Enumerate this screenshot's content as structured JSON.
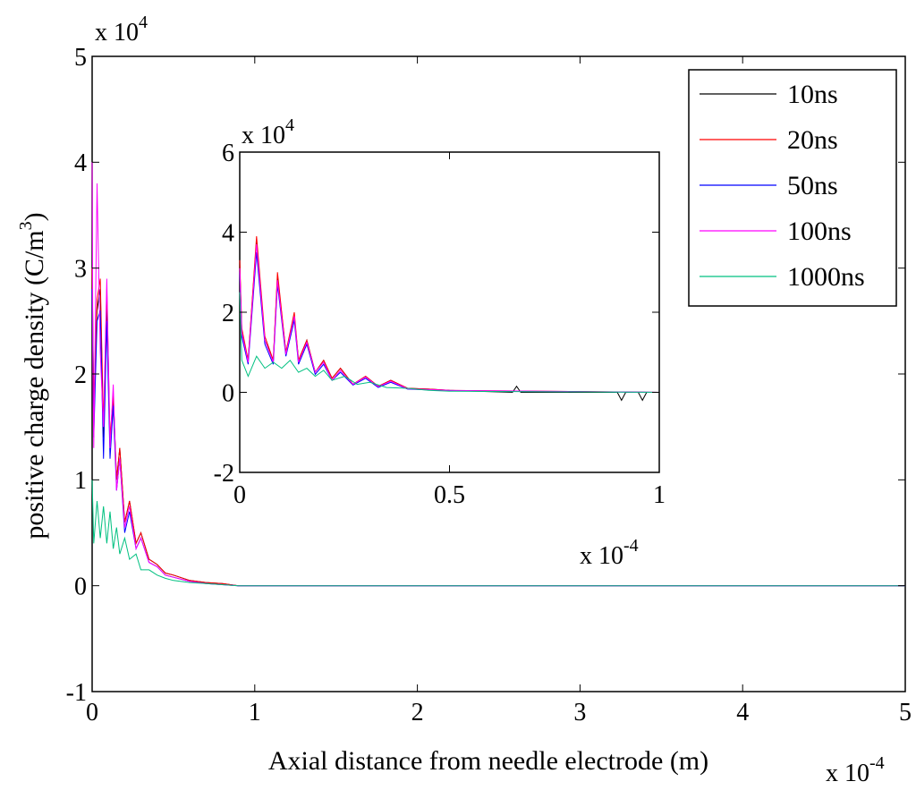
{
  "chart_data": [
    {
      "id": "main",
      "type": "line",
      "xlabel": "Axial distance from needle electrode (m)",
      "ylabel": "positive charge density (C/m³)",
      "ylabel_base": "positive charge density (C/m",
      "ylabel_sup": "3",
      "ylabel_close": ")",
      "xlim": [
        0,
        5
      ],
      "ylim": [
        -1,
        5
      ],
      "x_ticks": [
        0,
        1,
        2,
        3,
        4,
        5
      ],
      "y_ticks": [
        -1,
        0,
        1,
        2,
        3,
        4,
        5
      ],
      "x_multiplier": {
        "base": "x 10",
        "exp": "-4"
      },
      "y_multiplier": {
        "base": "x 10",
        "exp": "4"
      },
      "grid": false,
      "legend": {
        "placement": "top-right",
        "entries": [
          {
            "label": "10ns",
            "color": "#000000"
          },
          {
            "label": "20ns",
            "color": "#ff0000"
          },
          {
            "label": "50ns",
            "color": "#0000ff"
          },
          {
            "label": "100ns",
            "color": "#ff00ff"
          },
          {
            "label": "1000ns",
            "color": "#00c080"
          }
        ]
      },
      "series": [
        {
          "name": "10ns",
          "color": "#000000",
          "x": [
            0,
            0.01,
            0.03,
            0.05,
            0.07,
            0.09,
            0.11,
            0.13,
            0.15,
            0.17,
            0.2,
            0.23,
            0.27,
            0.3,
            0.35,
            0.4,
            0.45,
            0.5,
            0.6,
            0.7,
            0.8,
            0.9,
            1.0,
            5.0
          ],
          "y": [
            3.0,
            1.6,
            2.6,
            2.8,
            1.4,
            2.7,
            1.3,
            1.8,
            1.0,
            1.3,
            0.6,
            0.8,
            0.4,
            0.5,
            0.25,
            0.2,
            0.12,
            0.1,
            0.05,
            0.03,
            0.02,
            0.0,
            0.0,
            0.0
          ]
        },
        {
          "name": "20ns",
          "color": "#ff0000",
          "x": [
            0,
            0.01,
            0.03,
            0.05,
            0.07,
            0.09,
            0.11,
            0.13,
            0.15,
            0.17,
            0.2,
            0.23,
            0.27,
            0.3,
            0.35,
            0.4,
            0.45,
            0.5,
            0.6,
            0.7,
            0.8,
            0.9,
            1.0,
            5.0
          ],
          "y": [
            3.0,
            1.7,
            2.7,
            2.9,
            1.5,
            2.8,
            1.4,
            1.8,
            1.0,
            1.3,
            0.6,
            0.8,
            0.4,
            0.5,
            0.25,
            0.2,
            0.12,
            0.1,
            0.05,
            0.03,
            0.02,
            0.0,
            0.0,
            0.0
          ]
        },
        {
          "name": "50ns",
          "color": "#0000ff",
          "x": [
            0,
            0.01,
            0.03,
            0.05,
            0.07,
            0.09,
            0.11,
            0.13,
            0.15,
            0.17,
            0.2,
            0.23,
            0.27,
            0.3,
            0.35,
            0.4,
            0.45,
            0.5,
            0.6,
            0.7,
            0.8,
            0.9,
            1.0,
            5.0
          ],
          "y": [
            2.8,
            1.4,
            2.5,
            2.6,
            1.2,
            2.5,
            1.2,
            1.7,
            0.9,
            1.2,
            0.5,
            0.7,
            0.35,
            0.45,
            0.22,
            0.18,
            0.1,
            0.08,
            0.04,
            0.02,
            0.01,
            0.0,
            0.0,
            0.0
          ]
        },
        {
          "name": "100ns",
          "color": "#ff00ff",
          "x": [
            0,
            0.005,
            0.01,
            0.03,
            0.05,
            0.07,
            0.09,
            0.11,
            0.13,
            0.15,
            0.17,
            0.2,
            0.23,
            0.27,
            0.3,
            0.35,
            0.4,
            0.45,
            0.5,
            0.6,
            0.7,
            0.8,
            0.9,
            1.0,
            5.0
          ],
          "y": [
            4.0,
            2.0,
            1.3,
            3.8,
            2.2,
            1.5,
            2.9,
            1.3,
            1.9,
            0.9,
            1.2,
            0.55,
            0.75,
            0.35,
            0.45,
            0.22,
            0.18,
            0.1,
            0.08,
            0.04,
            0.02,
            0.01,
            0.0,
            0.0,
            0.0
          ]
        },
        {
          "name": "1000ns",
          "color": "#00c080",
          "x": [
            0,
            0.01,
            0.03,
            0.05,
            0.07,
            0.09,
            0.11,
            0.13,
            0.15,
            0.17,
            0.2,
            0.23,
            0.27,
            0.3,
            0.35,
            0.4,
            0.45,
            0.5,
            0.6,
            0.7,
            0.8,
            0.9,
            1.0,
            5.0
          ],
          "y": [
            1.0,
            0.4,
            0.8,
            0.45,
            0.75,
            0.4,
            0.7,
            0.35,
            0.55,
            0.3,
            0.45,
            0.25,
            0.3,
            0.15,
            0.15,
            0.1,
            0.07,
            0.05,
            0.03,
            0.02,
            0.01,
            0.0,
            0.0,
            0.0
          ]
        }
      ]
    },
    {
      "id": "inset",
      "type": "line",
      "xlim": [
        0,
        1
      ],
      "ylim": [
        -2,
        6
      ],
      "x_ticks": [
        0,
        0.5,
        1
      ],
      "y_ticks": [
        -2,
        0,
        2,
        4,
        6
      ],
      "x_multiplier": {
        "base": "x 10",
        "exp": "-4"
      },
      "y_multiplier": {
        "base": "x 10",
        "exp": "4"
      },
      "grid": false,
      "series": [
        {
          "name": "10ns",
          "color": "#000000",
          "x": [
            0,
            0.005,
            0.02,
            0.04,
            0.06,
            0.08,
            0.09,
            0.11,
            0.13,
            0.14,
            0.16,
            0.18,
            0.2,
            0.22,
            0.24,
            0.27,
            0.3,
            0.33,
            0.36,
            0.4,
            0.45,
            0.5,
            0.65,
            0.66,
            0.67,
            0.9,
            0.91,
            0.92,
            0.95,
            0.96,
            0.97,
            1.0
          ],
          "y": [
            3.2,
            1.5,
            0.8,
            3.8,
            1.3,
            0.8,
            2.9,
            1.0,
            1.9,
            0.8,
            1.3,
            0.5,
            0.8,
            0.35,
            0.6,
            0.2,
            0.4,
            0.15,
            0.3,
            0.1,
            0.08,
            0.05,
            0.0,
            0.15,
            0.0,
            0.0,
            -0.2,
            0.0,
            0.0,
            -0.2,
            0.0,
            0.0
          ]
        },
        {
          "name": "20ns",
          "color": "#ff0000",
          "x": [
            0,
            0.005,
            0.02,
            0.04,
            0.06,
            0.08,
            0.09,
            0.11,
            0.13,
            0.14,
            0.16,
            0.18,
            0.2,
            0.22,
            0.24,
            0.27,
            0.3,
            0.33,
            0.36,
            0.4,
            0.45,
            0.5,
            1.0
          ],
          "y": [
            3.3,
            1.6,
            0.8,
            3.9,
            1.4,
            0.8,
            3.0,
            1.0,
            2.0,
            0.8,
            1.3,
            0.5,
            0.8,
            0.35,
            0.6,
            0.2,
            0.4,
            0.15,
            0.3,
            0.1,
            0.08,
            0.05,
            0.0
          ]
        },
        {
          "name": "50ns",
          "color": "#0000ff",
          "x": [
            0,
            0.005,
            0.02,
            0.04,
            0.06,
            0.08,
            0.09,
            0.11,
            0.13,
            0.14,
            0.16,
            0.18,
            0.2,
            0.22,
            0.24,
            0.27,
            0.3,
            0.33,
            0.36,
            0.4,
            0.45,
            0.5,
            1.0
          ],
          "y": [
            3.0,
            1.4,
            0.7,
            3.5,
            1.2,
            0.7,
            2.7,
            0.9,
            1.8,
            0.7,
            1.2,
            0.45,
            0.7,
            0.3,
            0.5,
            0.18,
            0.35,
            0.12,
            0.25,
            0.08,
            0.06,
            0.04,
            0.0
          ]
        },
        {
          "name": "100ns",
          "color": "#ff00ff",
          "x": [
            0,
            0.005,
            0.02,
            0.04,
            0.06,
            0.08,
            0.09,
            0.11,
            0.13,
            0.14,
            0.16,
            0.18,
            0.2,
            0.22,
            0.24,
            0.27,
            0.3,
            0.33,
            0.36,
            0.4,
            0.45,
            0.5,
            1.0
          ],
          "y": [
            3.1,
            1.5,
            0.75,
            3.7,
            1.3,
            0.75,
            2.8,
            0.95,
            1.9,
            0.75,
            1.25,
            0.5,
            0.75,
            0.3,
            0.55,
            0.2,
            0.38,
            0.14,
            0.28,
            0.09,
            0.07,
            0.05,
            0.0
          ]
        },
        {
          "name": "1000ns",
          "color": "#00c080",
          "x": [
            0,
            0.005,
            0.02,
            0.04,
            0.06,
            0.08,
            0.1,
            0.12,
            0.14,
            0.16,
            0.18,
            0.2,
            0.22,
            0.25,
            0.28,
            0.31,
            0.35,
            0.4,
            0.45,
            0.5,
            1.0
          ],
          "y": [
            2.5,
            0.8,
            0.4,
            0.9,
            0.6,
            0.75,
            0.6,
            0.8,
            0.5,
            0.6,
            0.4,
            0.55,
            0.3,
            0.4,
            0.2,
            0.25,
            0.12,
            0.1,
            0.05,
            0.03,
            0.0
          ]
        }
      ]
    }
  ]
}
